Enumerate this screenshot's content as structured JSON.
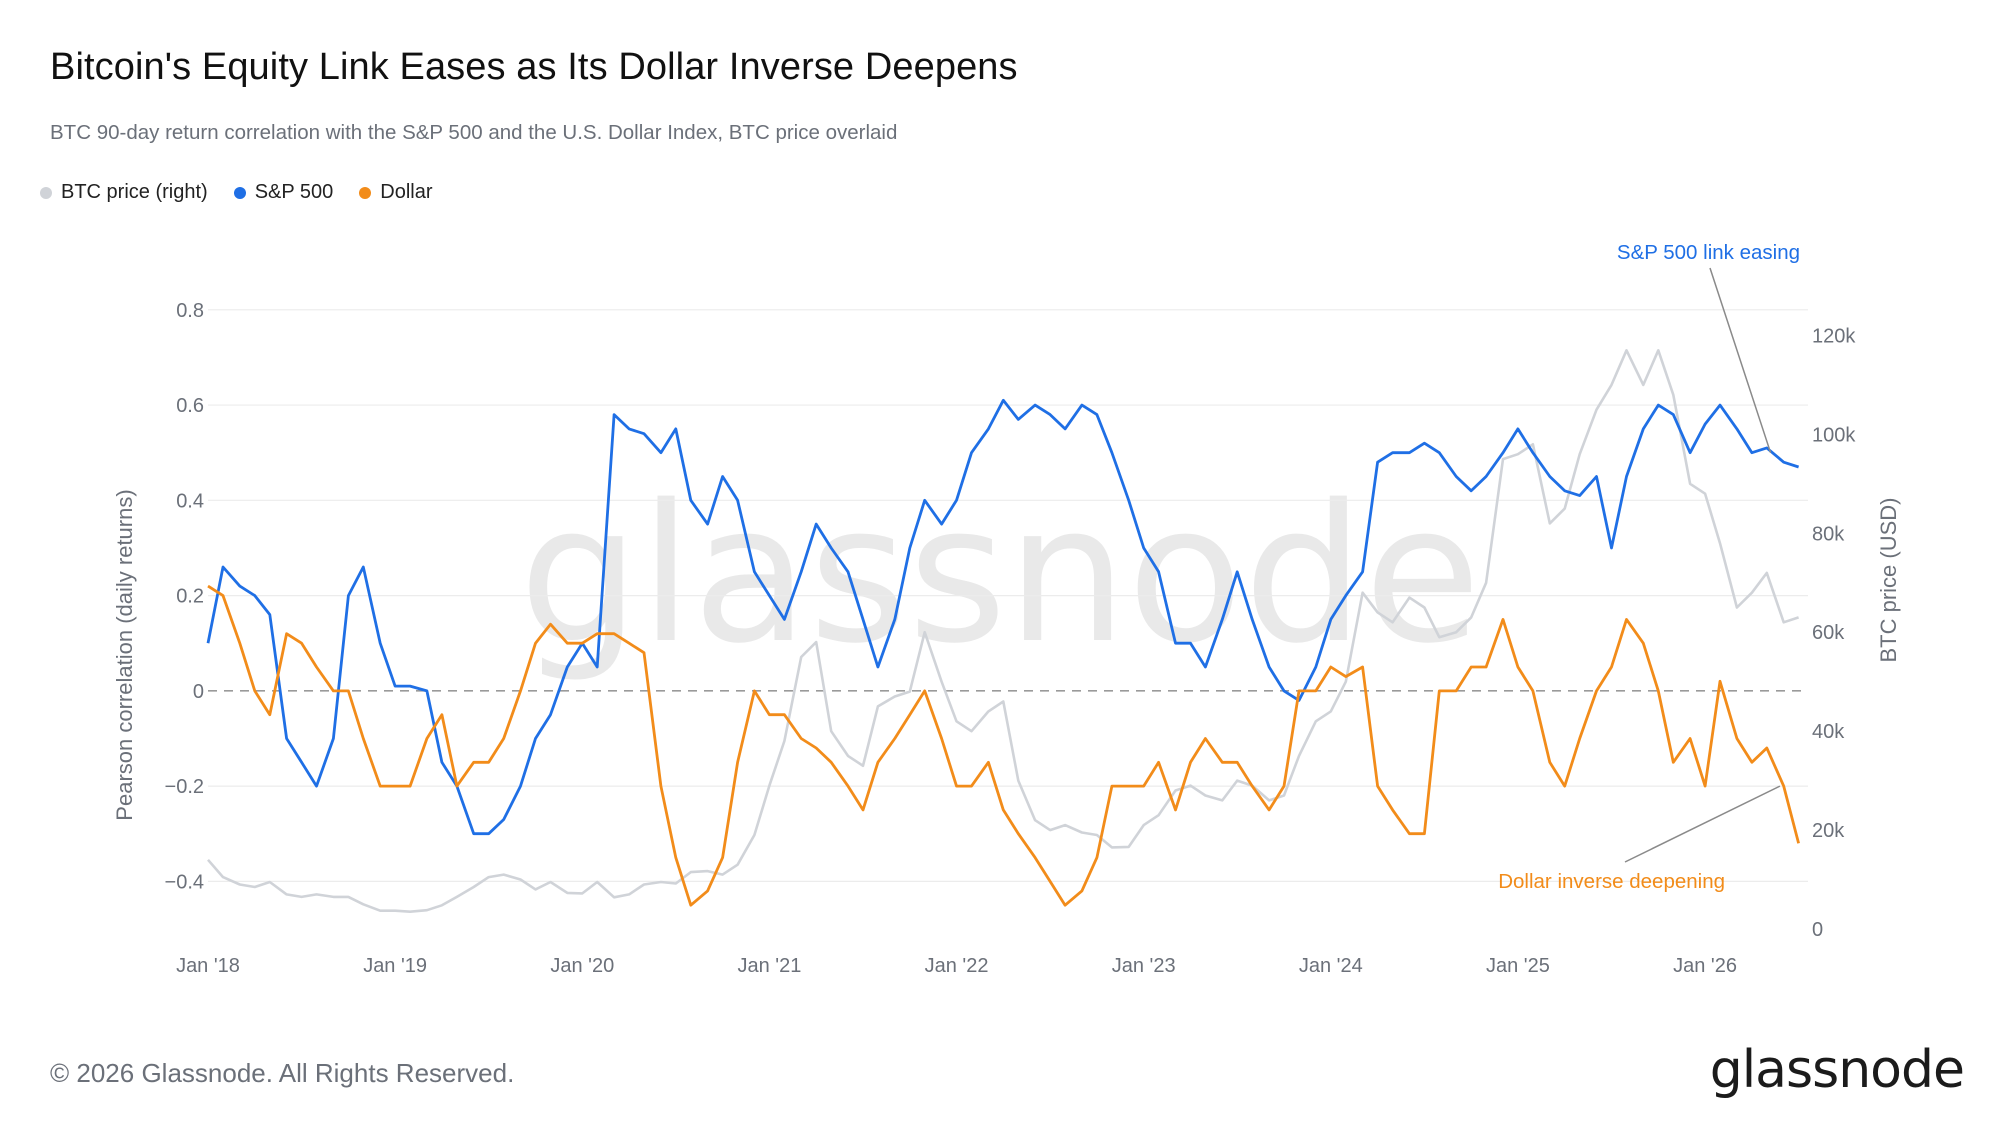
{
  "header": {
    "title": "Bitcoin's Equity Link Eases as Its Dollar Inverse Deepens",
    "subtitle": "BTC 90-day return correlation with the S&P 500 and the U.S. Dollar Index, BTC price overlaid"
  },
  "legend": [
    {
      "label": "BTC price (right)",
      "color": "#d0d3d8"
    },
    {
      "label": "S&P 500",
      "color": "#1f6fe5"
    },
    {
      "label": "Dollar",
      "color": "#f28c1a"
    }
  ],
  "footer": {
    "copyright": "© 2026 Glassnode. All Rights Reserved.",
    "logo": "glassnode",
    "watermark": "glassnode"
  },
  "chart_data": {
    "type": "line",
    "x_ticks": [
      "Jan '18",
      "Jan '19",
      "Jan '20",
      "Jan '21",
      "Jan '22",
      "Jan '23",
      "Jan '24",
      "Jan '25",
      "Jan '26"
    ],
    "x_range": [
      "2018-01",
      "2026-07"
    ],
    "ylabel": "Pearson correlation (daily returns)",
    "ylim": [
      -0.5,
      0.85
    ],
    "y_ticks": [
      "−0.4",
      "−0.2",
      "0",
      "0.2",
      "0.4",
      "0.6",
      "0.8"
    ],
    "y2label": "BTC price (USD)",
    "y2lim": [
      0,
      130000
    ],
    "y2_ticks": [
      "0",
      "20k",
      "40k",
      "60k",
      "80k",
      "100k",
      "120k"
    ],
    "zero_line": "dashed",
    "grid": "horizontal",
    "colors": {
      "btc": "#d0d3d8",
      "sp500": "#1f6fe5",
      "dollar": "#f28c1a"
    },
    "series": [
      {
        "name": "BTC price (right)",
        "axis": "right",
        "x": [
          2018.0,
          2018.08,
          2018.17,
          2018.25,
          2018.33,
          2018.42,
          2018.5,
          2018.58,
          2018.67,
          2018.75,
          2018.83,
          2018.92,
          2019.0,
          2019.08,
          2019.17,
          2019.25,
          2019.33,
          2019.42,
          2019.5,
          2019.58,
          2019.67,
          2019.75,
          2019.83,
          2019.92,
          2020.0,
          2020.08,
          2020.17,
          2020.25,
          2020.33,
          2020.42,
          2020.5,
          2020.58,
          2020.67,
          2020.75,
          2020.83,
          2020.92,
          2021.0,
          2021.08,
          2021.17,
          2021.25,
          2021.33,
          2021.42,
          2021.5,
          2021.58,
          2021.67,
          2021.75,
          2021.83,
          2021.92,
          2022.0,
          2022.08,
          2022.17,
          2022.25,
          2022.33,
          2022.42,
          2022.5,
          2022.58,
          2022.67,
          2022.75,
          2022.83,
          2022.92,
          2023.0,
          2023.08,
          2023.17,
          2023.25,
          2023.33,
          2023.42,
          2023.5,
          2023.58,
          2023.67,
          2023.75,
          2023.83,
          2023.92,
          2024.0,
          2024.08,
          2024.17,
          2024.25,
          2024.33,
          2024.42,
          2024.5,
          2024.58,
          2024.67,
          2024.75,
          2024.83,
          2024.92,
          2025.0,
          2025.08,
          2025.17,
          2025.25,
          2025.33,
          2025.42,
          2025.5,
          2025.58,
          2025.67,
          2025.75,
          2025.83,
          2025.92,
          2026.0,
          2026.08,
          2026.17,
          2026.25,
          2026.33,
          2026.42,
          2026.5
        ],
        "values": [
          14000,
          10500,
          9000,
          8500,
          9500,
          7000,
          6500,
          7000,
          6500,
          6500,
          5000,
          3700,
          3700,
          3500,
          3800,
          4800,
          6500,
          8500,
          10500,
          11000,
          10000,
          8000,
          9500,
          7300,
          7200,
          9500,
          6400,
          7000,
          9000,
          9500,
          9200,
          11500,
          11700,
          11000,
          13000,
          19000,
          29000,
          38000,
          55000,
          58000,
          40000,
          35000,
          33000,
          45000,
          47000,
          48000,
          60000,
          50000,
          42000,
          40000,
          44000,
          46000,
          30000,
          22000,
          20000,
          21000,
          19500,
          19000,
          16500,
          16600,
          21000,
          23000,
          28000,
          29000,
          27000,
          26000,
          30000,
          29000,
          26000,
          27000,
          35000,
          42000,
          44000,
          50000,
          68000,
          64000,
          62000,
          67000,
          65000,
          59000,
          60000,
          63000,
          70000,
          95000,
          96000,
          98000,
          82000,
          85000,
          96000,
          105000,
          110000,
          117000,
          110000,
          117000,
          108000,
          90000,
          88000,
          78000,
          65000,
          68000,
          72000,
          62000,
          63000
        ]
      },
      {
        "name": "S&P 500",
        "axis": "left",
        "x": [
          2018.0,
          2018.08,
          2018.17,
          2018.25,
          2018.33,
          2018.42,
          2018.5,
          2018.58,
          2018.67,
          2018.75,
          2018.83,
          2018.92,
          2019.0,
          2019.08,
          2019.17,
          2019.25,
          2019.33,
          2019.42,
          2019.5,
          2019.58,
          2019.67,
          2019.75,
          2019.83,
          2019.92,
          2020.0,
          2020.08,
          2020.17,
          2020.25,
          2020.33,
          2020.42,
          2020.5,
          2020.58,
          2020.67,
          2020.75,
          2020.83,
          2020.92,
          2021.0,
          2021.08,
          2021.17,
          2021.25,
          2021.33,
          2021.42,
          2021.5,
          2021.58,
          2021.67,
          2021.75,
          2021.83,
          2021.92,
          2022.0,
          2022.08,
          2022.17,
          2022.25,
          2022.33,
          2022.42,
          2022.5,
          2022.58,
          2022.67,
          2022.75,
          2022.83,
          2022.92,
          2023.0,
          2023.08,
          2023.17,
          2023.25,
          2023.33,
          2023.42,
          2023.5,
          2023.58,
          2023.67,
          2023.75,
          2023.83,
          2023.92,
          2024.0,
          2024.08,
          2024.17,
          2024.25,
          2024.33,
          2024.42,
          2024.5,
          2024.58,
          2024.67,
          2024.75,
          2024.83,
          2024.92,
          2025.0,
          2025.08,
          2025.17,
          2025.25,
          2025.33,
          2025.42,
          2025.5,
          2025.58,
          2025.67,
          2025.75,
          2025.83,
          2025.92,
          2026.0,
          2026.08,
          2026.17,
          2026.25,
          2026.33,
          2026.42,
          2026.5
        ],
        "values": [
          0.1,
          0.26,
          0.22,
          0.2,
          0.16,
          -0.1,
          -0.15,
          -0.2,
          -0.1,
          0.2,
          0.26,
          0.1,
          0.01,
          0.01,
          0.0,
          -0.15,
          -0.2,
          -0.3,
          -0.3,
          -0.27,
          -0.2,
          -0.1,
          -0.05,
          0.05,
          0.1,
          0.05,
          0.58,
          0.55,
          0.54,
          0.5,
          0.55,
          0.4,
          0.35,
          0.45,
          0.4,
          0.25,
          0.2,
          0.15,
          0.25,
          0.35,
          0.3,
          0.25,
          0.15,
          0.05,
          0.15,
          0.3,
          0.4,
          0.35,
          0.4,
          0.5,
          0.55,
          0.61,
          0.57,
          0.6,
          0.58,
          0.55,
          0.6,
          0.58,
          0.5,
          0.4,
          0.3,
          0.25,
          0.1,
          0.1,
          0.05,
          0.15,
          0.25,
          0.15,
          0.05,
          0.0,
          -0.02,
          0.05,
          0.15,
          0.2,
          0.25,
          0.48,
          0.5,
          0.5,
          0.52,
          0.5,
          0.45,
          0.42,
          0.45,
          0.5,
          0.55,
          0.5,
          0.45,
          0.42,
          0.41,
          0.45,
          0.3,
          0.45,
          0.55,
          0.6,
          0.58,
          0.5,
          0.56,
          0.6,
          0.55,
          0.5,
          0.51,
          0.48,
          0.47
        ]
      },
      {
        "name": "Dollar",
        "axis": "left",
        "x": [
          2018.0,
          2018.08,
          2018.17,
          2018.25,
          2018.33,
          2018.42,
          2018.5,
          2018.58,
          2018.67,
          2018.75,
          2018.83,
          2018.92,
          2019.0,
          2019.08,
          2019.17,
          2019.25,
          2019.33,
          2019.42,
          2019.5,
          2019.58,
          2019.67,
          2019.75,
          2019.83,
          2019.92,
          2020.0,
          2020.08,
          2020.17,
          2020.25,
          2020.33,
          2020.42,
          2020.5,
          2020.58,
          2020.67,
          2020.75,
          2020.83,
          2020.92,
          2021.0,
          2021.08,
          2021.17,
          2021.25,
          2021.33,
          2021.42,
          2021.5,
          2021.58,
          2021.67,
          2021.75,
          2021.83,
          2021.92,
          2022.0,
          2022.08,
          2022.17,
          2022.25,
          2022.33,
          2022.42,
          2022.5,
          2022.58,
          2022.67,
          2022.75,
          2022.83,
          2022.92,
          2023.0,
          2023.08,
          2023.17,
          2023.25,
          2023.33,
          2023.42,
          2023.5,
          2023.58,
          2023.67,
          2023.75,
          2023.83,
          2023.92,
          2024.0,
          2024.08,
          2024.17,
          2024.25,
          2024.33,
          2024.42,
          2024.5,
          2024.58,
          2024.67,
          2024.75,
          2024.83,
          2024.92,
          2025.0,
          2025.08,
          2025.17,
          2025.25,
          2025.33,
          2025.42,
          2025.5,
          2025.58,
          2025.67,
          2025.75,
          2025.83,
          2025.92,
          2026.0,
          2026.08,
          2026.17,
          2026.25,
          2026.33,
          2026.42,
          2026.5
        ],
        "values": [
          0.22,
          0.2,
          0.1,
          0.0,
          -0.05,
          0.12,
          0.1,
          0.05,
          0.0,
          0.0,
          -0.1,
          -0.2,
          -0.2,
          -0.2,
          -0.1,
          -0.05,
          -0.2,
          -0.15,
          -0.15,
          -0.1,
          0.0,
          0.1,
          0.14,
          0.1,
          0.1,
          0.12,
          0.12,
          0.1,
          0.08,
          -0.2,
          -0.35,
          -0.45,
          -0.42,
          -0.35,
          -0.15,
          0.0,
          -0.05,
          -0.05,
          -0.1,
          -0.12,
          -0.15,
          -0.2,
          -0.25,
          -0.15,
          -0.1,
          -0.05,
          0.0,
          -0.1,
          -0.2,
          -0.2,
          -0.15,
          -0.25,
          -0.3,
          -0.35,
          -0.4,
          -0.45,
          -0.42,
          -0.35,
          -0.2,
          -0.2,
          -0.2,
          -0.15,
          -0.25,
          -0.15,
          -0.1,
          -0.15,
          -0.15,
          -0.2,
          -0.25,
          -0.2,
          0.0,
          0.0,
          0.05,
          0.03,
          0.05,
          -0.2,
          -0.25,
          -0.3,
          -0.3,
          0.0,
          0.0,
          0.05,
          0.05,
          0.15,
          0.05,
          0.0,
          -0.15,
          -0.2,
          -0.1,
          0.0,
          0.05,
          0.15,
          0.1,
          0.0,
          -0.15,
          -0.1,
          -0.2,
          0.02,
          -0.1,
          -0.15,
          -0.12,
          -0.2,
          -0.32
        ]
      }
    ],
    "annotations": [
      {
        "text": "S&P 500 link easing",
        "color": "#1f6fe5",
        "point_x": 2026.35,
        "point_y": 0.5
      },
      {
        "text": "Dollar inverse deepening",
        "color": "#f28c1a",
        "point_x": 2026.4,
        "point_y": -0.2
      }
    ]
  }
}
